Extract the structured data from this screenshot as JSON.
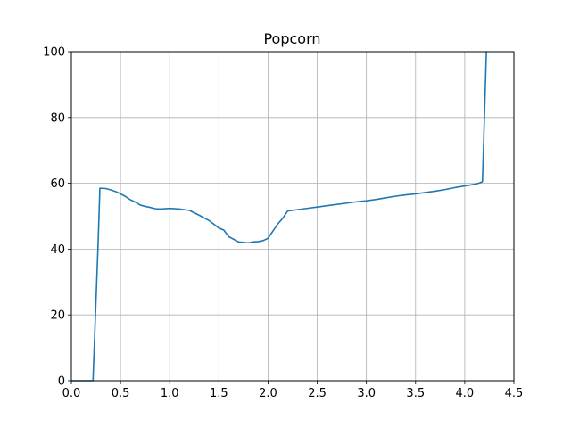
{
  "chart_data": {
    "type": "line",
    "title": "Popcorn",
    "xlabel": "",
    "ylabel": "",
    "xlim": [
      0.0,
      4.5
    ],
    "ylim": [
      0,
      100
    ],
    "grid": true,
    "x_ticks": [
      "0.0",
      "0.5",
      "1.0",
      "1.5",
      "2.0",
      "2.5",
      "3.0",
      "3.5",
      "4.0",
      "4.5"
    ],
    "y_ticks": [
      "0",
      "20",
      "40",
      "60",
      "80",
      "100"
    ],
    "series": [
      {
        "color": "#1f77b4",
        "x": [
          0.0,
          0.05,
          0.1,
          0.15,
          0.2,
          0.22,
          0.27,
          0.29,
          0.3,
          0.35,
          0.4,
          0.45,
          0.5,
          0.55,
          0.6,
          0.65,
          0.7,
          0.75,
          0.8,
          0.85,
          0.9,
          1.0,
          1.1,
          1.2,
          1.3,
          1.4,
          1.5,
          1.55,
          1.6,
          1.7,
          1.8,
          1.85,
          1.9,
          1.95,
          2.0,
          2.05,
          2.1,
          2.15,
          2.2,
          2.3,
          2.4,
          2.5,
          2.6,
          2.7,
          2.8,
          2.9,
          3.0,
          3.1,
          3.2,
          3.3,
          3.4,
          3.5,
          3.6,
          3.7,
          3.8,
          3.9,
          4.0,
          4.1,
          4.15,
          4.18,
          4.2,
          4.22
        ],
        "y": [
          0,
          0,
          0,
          0,
          0,
          0,
          40,
          58.5,
          58.5,
          58.4,
          58,
          57.5,
          56.8,
          56,
          55,
          54.3,
          53.4,
          53,
          52.7,
          52.3,
          52.2,
          52.4,
          52.2,
          51.8,
          50.3,
          48.7,
          46.4,
          45.8,
          43.8,
          42.2,
          41.9,
          42.2,
          42.3,
          42.6,
          43.3,
          45.5,
          47.7,
          49.4,
          51.6,
          52,
          52.4,
          52.8,
          53.2,
          53.6,
          54,
          54.4,
          54.7,
          55.1,
          55.6,
          56.1,
          56.5,
          56.8,
          57.2,
          57.6,
          58.1,
          58.7,
          59.2,
          59.7,
          60.1,
          60.5,
          80,
          100
        ]
      }
    ]
  }
}
